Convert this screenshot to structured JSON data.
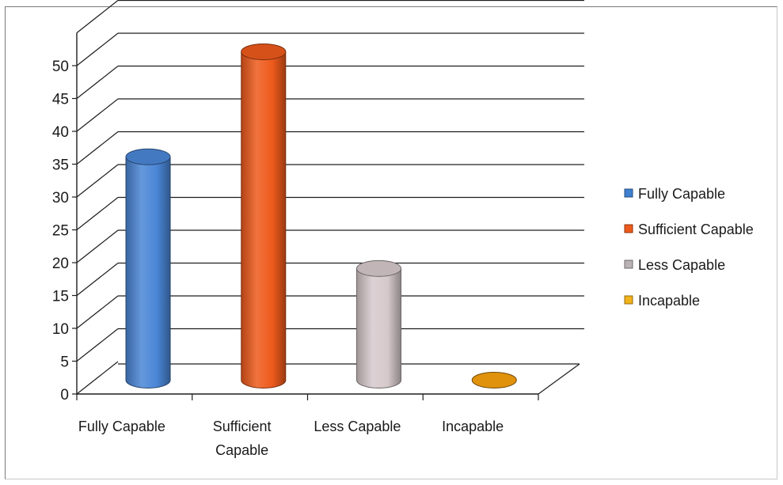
{
  "chart_data": {
    "type": "bar",
    "style": "3d-cylinder",
    "title": "",
    "xlabel": "",
    "ylabel": "",
    "ylim": [
      0,
      50
    ],
    "yticks": [
      0,
      5,
      10,
      15,
      20,
      25,
      30,
      35,
      40,
      45,
      50
    ],
    "grid": true,
    "legend_position": "right",
    "categories": [
      {
        "label_lines": [
          "Fully Capable"
        ],
        "value": 34,
        "color": "#4a86d6"
      },
      {
        "label_lines": [
          "Sufficient",
          "Capable"
        ],
        "value": 50,
        "color": "#ee5a1c"
      },
      {
        "label_lines": [
          "Less Capable"
        ],
        "value": 17,
        "color": "#d6c9cc"
      },
      {
        "label_lines": [
          "Incapable"
        ],
        "value": 0,
        "color": "#e0920c"
      }
    ],
    "legend": [
      {
        "label": "Fully Capable",
        "color": "#3f7fd0"
      },
      {
        "label": "Sufficient Capable",
        "color": "#ee5a1c"
      },
      {
        "label": "Less Capable",
        "color": "#b9b3b5"
      },
      {
        "label": "Incapable",
        "color": "#f2b21a"
      }
    ]
  }
}
